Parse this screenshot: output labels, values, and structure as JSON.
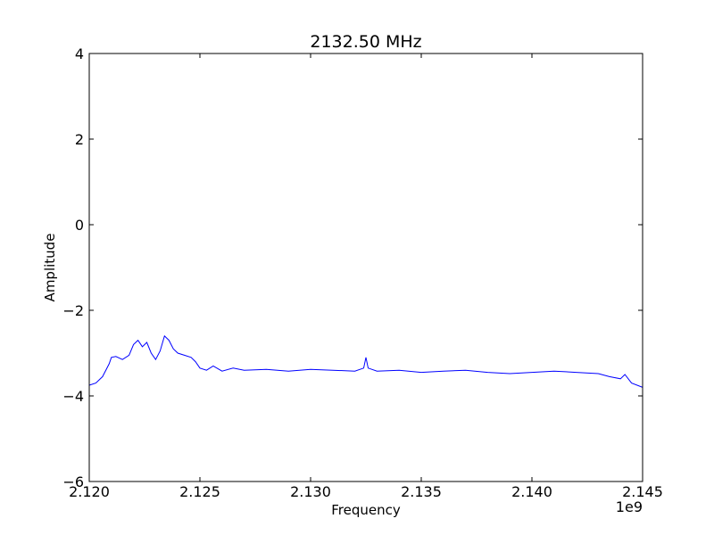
{
  "chart_data": {
    "type": "line",
    "title": "2132.50 MHz",
    "xlabel": "Frequency",
    "ylabel": "Amplitude",
    "x_offset_label": "1e9",
    "xlim": [
      2.12,
      2.145
    ],
    "ylim": [
      -6,
      4
    ],
    "x_ticks": [
      2.12,
      2.125,
      2.13,
      2.135,
      2.14,
      2.145
    ],
    "x_tick_labels": [
      "2.120",
      "2.125",
      "2.130",
      "2.135",
      "2.140",
      "2.145"
    ],
    "y_ticks": [
      -6,
      -4,
      -2,
      0,
      2,
      4
    ],
    "y_tick_labels": [
      "−6",
      "−4",
      "−2",
      "0",
      "2",
      "4"
    ],
    "grid": false,
    "line_color": "#0000ff",
    "series": [
      {
        "x": [
          2.12,
          2.1203,
          2.1206,
          2.1209,
          2.121,
          2.1212,
          2.1215,
          2.1218,
          2.122,
          2.1222,
          2.1224,
          2.1226,
          2.1228,
          2.123,
          2.1232,
          2.1234,
          2.1236,
          2.1238,
          2.124,
          2.1243,
          2.1246,
          2.1248,
          2.125,
          2.1253,
          2.1256,
          2.126,
          2.1265,
          2.127,
          2.128,
          2.129,
          2.13,
          2.131,
          2.132,
          2.1324,
          2.1325,
          2.1326,
          2.133,
          2.134,
          2.135,
          2.136,
          2.137,
          2.138,
          2.139,
          2.14,
          2.141,
          2.142,
          2.143,
          2.1435,
          2.144,
          2.1442,
          2.1445,
          2.145
        ],
        "y": [
          -3.75,
          -3.7,
          -3.55,
          -3.25,
          -3.1,
          -3.08,
          -3.15,
          -3.05,
          -2.8,
          -2.7,
          -2.85,
          -2.75,
          -3.0,
          -3.15,
          -2.95,
          -2.6,
          -2.7,
          -2.9,
          -3.0,
          -3.05,
          -3.1,
          -3.2,
          -3.35,
          -3.4,
          -3.3,
          -3.42,
          -3.35,
          -3.4,
          -3.38,
          -3.42,
          -3.38,
          -3.4,
          -3.42,
          -3.35,
          -3.1,
          -3.35,
          -3.42,
          -3.4,
          -3.45,
          -3.42,
          -3.4,
          -3.45,
          -3.48,
          -3.45,
          -3.42,
          -3.45,
          -3.48,
          -3.55,
          -3.6,
          -3.5,
          -3.7,
          -3.8
        ]
      }
    ]
  }
}
